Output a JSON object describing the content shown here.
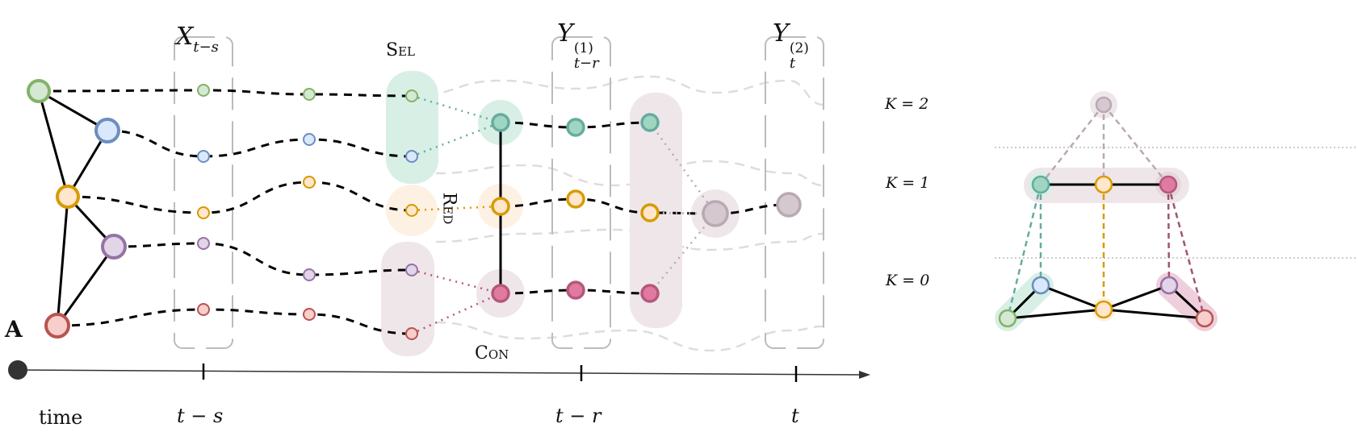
{
  "labels": {
    "x_main": "X",
    "x_sub": "t−s",
    "sel": "Sel",
    "y1_main": "Y",
    "y1_sub": "t−r",
    "y1_sup": "(1)",
    "y2_main": "Y",
    "y2_sub": "t",
    "y2_sup": "(2)",
    "red": "Red",
    "con": "Con",
    "adjacency": "A"
  },
  "timeline": {
    "start_label": "time",
    "ticks": [
      "t − s",
      "t − r",
      "t"
    ]
  },
  "hierarchy": {
    "levels": [
      "K = 2",
      "K = 1",
      "K = 0"
    ]
  },
  "colors": {
    "green": "#82b366",
    "blue": "#6c8ebf",
    "orange": "#d79b00",
    "purple": "#9673a6",
    "red": "#b85450",
    "teal": "#67ab9f",
    "pink": "#b5577a",
    "gray": "#b9a9b3"
  }
}
